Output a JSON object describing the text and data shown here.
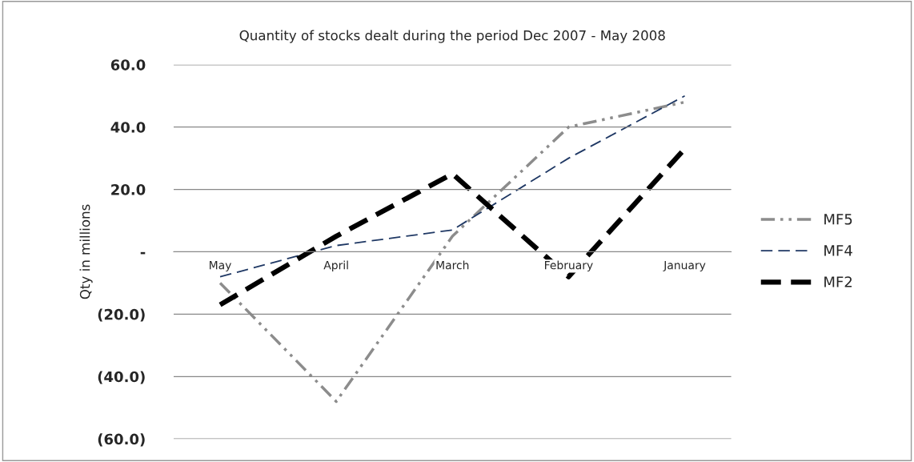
{
  "chart_data": {
    "type": "line",
    "title": "Quantity of stocks dealt during the period Dec 2007 - May 2008",
    "ylabel": "Qty in millions",
    "categories": [
      "May",
      "April",
      "March",
      "February",
      "January"
    ],
    "series": [
      {
        "name": "MF5",
        "color": "#8c8c8c",
        "line_style": "dashed",
        "values": [
          -10,
          -48,
          5,
          40,
          48
        ]
      },
      {
        "name": "MF4",
        "color": "#1f3864",
        "line_style": "dashed",
        "values": [
          -8,
          2,
          7,
          30,
          50
        ]
      },
      {
        "name": "MF2",
        "color": "#000000",
        "line_style": "dashed",
        "values": [
          -17,
          5,
          25,
          -8,
          33
        ]
      }
    ],
    "ylim": [
      -60,
      60
    ],
    "yticks": [
      {
        "value": -60,
        "label": "(60.0)"
      },
      {
        "value": -40,
        "label": "(40.0)"
      },
      {
        "value": -20,
        "label": "(20.0)"
      },
      {
        "value": 0,
        "label": "-"
      },
      {
        "value": 20,
        "label": "20.0"
      },
      {
        "value": 40,
        "label": "40.0"
      },
      {
        "value": 60,
        "label": "60.0"
      }
    ],
    "grid": "y",
    "legend": "right",
    "marker": "none"
  }
}
